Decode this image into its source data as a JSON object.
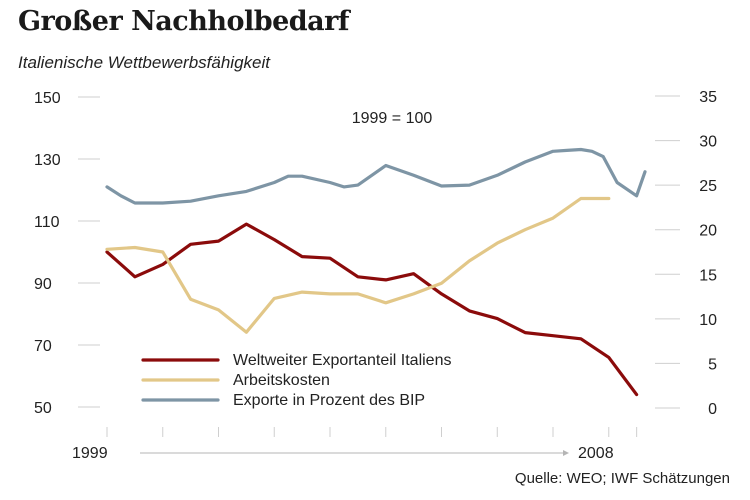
{
  "header": {
    "title": "Großer Nachholbedarf",
    "subtitle": "Italienische Wettbewerbsfähigkeit"
  },
  "source": "Quelle: WEO; IWF Schätzungen",
  "chart_data": {
    "type": "line",
    "annotation": "1999 = 100",
    "x_start_label": "1999",
    "x_end_label": "2008",
    "y_left": {
      "range": [
        50,
        150
      ],
      "ticks": [
        "150",
        "130",
        "110",
        "90",
        "70",
        "50"
      ]
    },
    "y_right": {
      "range": [
        0,
        35
      ],
      "ticks": [
        "35",
        "30",
        "25",
        "20",
        "15",
        "10",
        "5",
        "0"
      ]
    },
    "grid": true,
    "legend_placement": "bottom-left",
    "series": [
      {
        "name": "Weltweiter Exportanteil Italiens",
        "axis": "left",
        "color": "#8b0b0b",
        "x": [
          0,
          1,
          2,
          3,
          4,
          5,
          6,
          7,
          8,
          9,
          10,
          11,
          12,
          13,
          14,
          15,
          16,
          17,
          18,
          19
        ],
        "values": [
          100,
          92,
          96,
          102.5,
          103.5,
          109,
          104,
          98.5,
          98,
          92,
          91,
          93,
          86.5,
          81,
          78.5,
          74,
          73,
          72,
          66,
          54
        ]
      },
      {
        "name": "Arbeitskosten",
        "axis": "right",
        "color": "#e2c788",
        "x": [
          0,
          1,
          2,
          3,
          4,
          5,
          6,
          7,
          8,
          9,
          10,
          11,
          12,
          13,
          14,
          15,
          16,
          17,
          18
        ],
        "values": [
          17.8,
          18,
          17.5,
          12.2,
          11,
          8.5,
          12.3,
          13,
          12.8,
          12.8,
          11.8,
          12.8,
          14,
          16.5,
          18.5,
          20,
          21.3,
          23.5,
          23.5
        ]
      },
      {
        "name": "Exporte in Prozent des BIP",
        "axis": "right",
        "color": "#7e95a5",
        "x": [
          0,
          0.5,
          1,
          2,
          3,
          4,
          5,
          6,
          6.5,
          7,
          8,
          8.5,
          9,
          10,
          11,
          12,
          13,
          14,
          15,
          16,
          16.5,
          17,
          17.4,
          17.8,
          18.3,
          19,
          19.3
        ],
        "values": [
          24.8,
          23.8,
          23,
          23,
          23.2,
          23.8,
          24.3,
          25.3,
          26,
          26,
          25.3,
          24.8,
          25,
          27.2,
          26.1,
          24.9,
          25,
          26.1,
          27.6,
          28.8,
          28.9,
          29,
          28.8,
          28.2,
          25.3,
          23.8,
          26.5
        ]
      }
    ]
  }
}
